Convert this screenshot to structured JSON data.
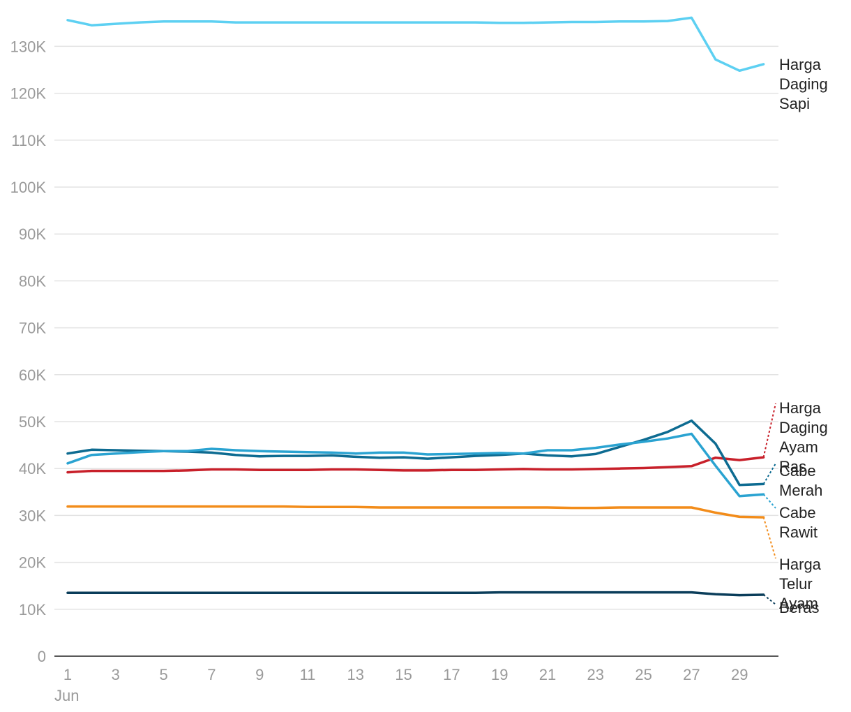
{
  "chart_data": {
    "type": "line",
    "title": "",
    "xlabel": "",
    "ylabel": "",
    "x_start_day": 1,
    "x_month": "Jun",
    "x": [
      1,
      2,
      3,
      4,
      5,
      6,
      7,
      8,
      9,
      10,
      11,
      12,
      13,
      14,
      15,
      16,
      17,
      18,
      19,
      20,
      21,
      22,
      23,
      24,
      25,
      26,
      27,
      28,
      29,
      30
    ],
    "x_ticks": [
      1,
      3,
      5,
      7,
      9,
      11,
      13,
      15,
      17,
      19,
      21,
      23,
      25,
      27,
      29
    ],
    "y_ticks": [
      0,
      10000,
      20000,
      30000,
      40000,
      50000,
      60000,
      70000,
      80000,
      90000,
      100000,
      110000,
      120000,
      130000
    ],
    "y_tick_labels": [
      "0",
      "10K",
      "20K",
      "30K",
      "40K",
      "50K",
      "60K",
      "70K",
      "80K",
      "90K",
      "100K",
      "110K",
      "120K",
      "130K"
    ],
    "ylim": [
      0,
      136000
    ],
    "grid": true,
    "legend": "direct labels at right end of lines",
    "series": [
      {
        "name": "Harga Daging Sapi",
        "label_lines": [
          "Harga",
          "Daging",
          "Sapi"
        ],
        "color": "#5dd0f2",
        "values": [
          135600,
          134500,
          134800,
          135100,
          135300,
          135300,
          135300,
          135100,
          135100,
          135100,
          135100,
          135100,
          135100,
          135100,
          135100,
          135100,
          135100,
          135100,
          135000,
          135000,
          135100,
          135200,
          135200,
          135300,
          135300,
          135400,
          136100,
          127200,
          124800,
          126200
        ]
      },
      {
        "name": "Harga Daging Ayam Ras",
        "label_lines": [
          "Harga",
          "Daging",
          "Ayam",
          "Ras"
        ],
        "color": "#c8202a",
        "values": [
          39200,
          39500,
          39500,
          39500,
          39500,
          39600,
          39800,
          39800,
          39700,
          39700,
          39700,
          39800,
          39800,
          39700,
          39600,
          39600,
          39700,
          39700,
          39800,
          39900,
          39800,
          39800,
          39900,
          40000,
          40100,
          40300,
          40500,
          42300,
          41800,
          42400
        ]
      },
      {
        "name": "Cabe Merah",
        "label_lines": [
          "Cabe",
          "Merah"
        ],
        "color": "#0d6b91",
        "values": [
          43200,
          44000,
          43900,
          43800,
          43700,
          43600,
          43400,
          42900,
          42600,
          42700,
          42700,
          42800,
          42500,
          42300,
          42400,
          42100,
          42400,
          42700,
          42900,
          43200,
          42800,
          42600,
          43100,
          44600,
          46100,
          47800,
          50200,
          45300,
          36500,
          36700
        ]
      },
      {
        "name": "Cabe Rawit",
        "label_lines": [
          "Cabe",
          "Rawit"
        ],
        "color": "#2aa3d1",
        "values": [
          41100,
          42900,
          43200,
          43500,
          43700,
          43700,
          44200,
          43900,
          43700,
          43600,
          43500,
          43400,
          43200,
          43400,
          43400,
          43000,
          43100,
          43200,
          43300,
          43200,
          43900,
          43900,
          44400,
          45100,
          45700,
          46400,
          47400,
          40600,
          34100,
          34500
        ]
      },
      {
        "name": "Harga Telur Ayam",
        "label_lines": [
          "Harga",
          "Telur",
          "Ayam"
        ],
        "color": "#f28c1a",
        "values": [
          31900,
          31900,
          31900,
          31900,
          31900,
          31900,
          31900,
          31900,
          31900,
          31900,
          31800,
          31800,
          31800,
          31700,
          31700,
          31700,
          31700,
          31700,
          31700,
          31700,
          31700,
          31600,
          31600,
          31700,
          31700,
          31700,
          31700,
          30600,
          29700,
          29600
        ]
      },
      {
        "name": "Beras",
        "label_lines": [
          "Beras"
        ],
        "color": "#0a3d5a",
        "values": [
          13500,
          13500,
          13500,
          13500,
          13500,
          13500,
          13500,
          13500,
          13500,
          13500,
          13500,
          13500,
          13500,
          13500,
          13500,
          13500,
          13500,
          13500,
          13600,
          13600,
          13600,
          13600,
          13600,
          13600,
          13600,
          13600,
          13600,
          13200,
          13000,
          13100
        ]
      }
    ]
  }
}
